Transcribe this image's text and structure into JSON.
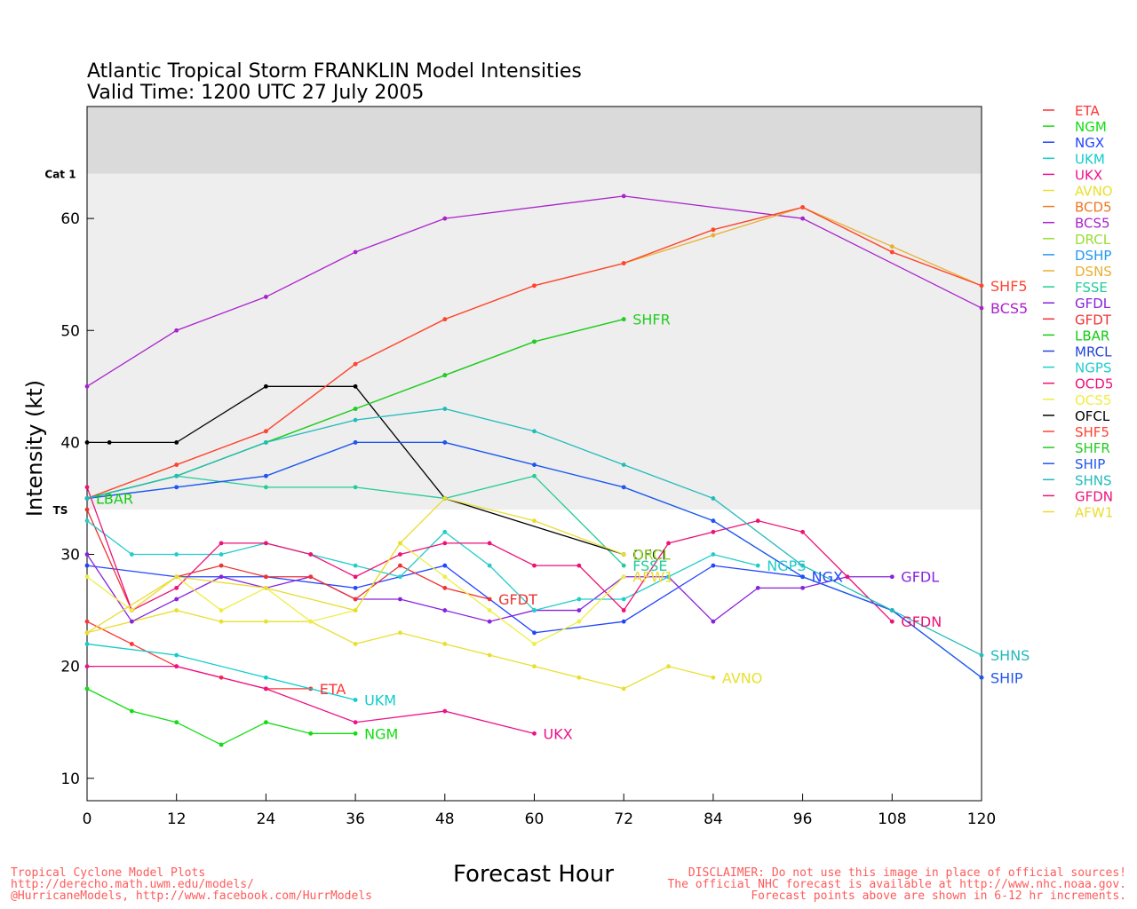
{
  "chart_data": {
    "type": "line",
    "title": "Atlantic Tropical Storm FRANKLIN Model Intensities",
    "subtitle": "Valid Time: 1200 UTC 27 July 2005",
    "xlabel": "Forecast Hour",
    "ylabel": "Intensity (kt)",
    "xlim": [
      0,
      120
    ],
    "ylim": [
      8,
      70
    ],
    "x_ticks": [
      0,
      12,
      24,
      36,
      48,
      60,
      72,
      84,
      96,
      108,
      120
    ],
    "y_ticks": [
      10,
      20,
      30,
      40,
      50,
      60
    ],
    "bands": [
      {
        "label": "TS",
        "from": 34,
        "to": 64,
        "color": "#eeeeee"
      },
      {
        "label": "Cat 1",
        "from": 64,
        "to": 70,
        "color": "#dadada"
      }
    ],
    "legend_position": "right",
    "series": [
      {
        "name": "ETA",
        "color": "#ff3333",
        "points": [
          [
            0,
            24
          ],
          [
            6,
            22
          ],
          [
            12,
            20
          ],
          [
            18,
            19
          ],
          [
            24,
            18
          ],
          [
            30,
            18
          ]
        ]
      },
      {
        "name": "NGM",
        "color": "#11dd11",
        "points": [
          [
            0,
            18
          ],
          [
            6,
            16
          ],
          [
            12,
            15
          ],
          [
            18,
            13
          ],
          [
            24,
            15
          ],
          [
            30,
            14
          ],
          [
            36,
            14
          ]
        ]
      },
      {
        "name": "NGX",
        "color": "#2244ff",
        "points": [
          [
            0,
            29
          ],
          [
            12,
            28
          ],
          [
            24,
            28
          ],
          [
            36,
            27
          ],
          [
            48,
            29
          ],
          [
            60,
            23
          ],
          [
            72,
            24
          ],
          [
            84,
            29
          ],
          [
            96,
            28
          ]
        ]
      },
      {
        "name": "UKM",
        "color": "#11cccc",
        "points": [
          [
            0,
            22
          ],
          [
            12,
            21
          ],
          [
            24,
            19
          ],
          [
            36,
            17
          ]
        ]
      },
      {
        "name": "UKX",
        "color": "#ee1188",
        "points": [
          [
            0,
            20
          ],
          [
            12,
            20
          ],
          [
            24,
            18
          ],
          [
            36,
            15
          ],
          [
            48,
            16
          ],
          [
            60,
            14
          ]
        ]
      },
      {
        "name": "AVNO",
        "color": "#e8e030",
        "points": [
          [
            0,
            23
          ],
          [
            12,
            25
          ],
          [
            18,
            24
          ],
          [
            24,
            24
          ],
          [
            30,
            24
          ],
          [
            36,
            22
          ],
          [
            42,
            23
          ],
          [
            48,
            22
          ],
          [
            54,
            21
          ],
          [
            60,
            20
          ],
          [
            66,
            19
          ],
          [
            72,
            18
          ],
          [
            78,
            20
          ],
          [
            84,
            19
          ]
        ]
      },
      {
        "name": "BCD5",
        "color": "#ee7722",
        "points": [
          [
            0,
            35
          ],
          [
            12,
            38
          ],
          [
            24,
            41
          ],
          [
            36,
            47
          ],
          [
            48,
            51
          ],
          [
            60,
            54
          ],
          [
            72,
            56
          ],
          [
            84,
            59
          ],
          [
            96,
            61
          ],
          [
            108,
            57
          ],
          [
            120,
            54
          ]
        ]
      },
      {
        "name": "BCS5",
        "color": "#aa22cc",
        "points": [
          [
            0,
            45
          ],
          [
            12,
            50
          ],
          [
            24,
            53
          ],
          [
            36,
            57
          ],
          [
            48,
            60
          ],
          [
            72,
            62
          ],
          [
            96,
            60
          ],
          [
            120,
            52
          ]
        ]
      },
      {
        "name": "DRCL",
        "color": "#99dd33",
        "points": []
      },
      {
        "name": "DSHP",
        "color": "#2299ee",
        "points": [
          [
            0,
            35
          ],
          [
            12,
            36
          ],
          [
            24,
            37
          ],
          [
            36,
            40
          ],
          [
            48,
            40
          ],
          [
            60,
            38
          ],
          [
            72,
            36
          ],
          [
            84,
            33
          ],
          [
            96,
            28
          ],
          [
            108,
            25
          ],
          [
            120,
            19
          ]
        ]
      },
      {
        "name": "DSNS",
        "color": "#e8b030",
        "points": [
          [
            72,
            56
          ],
          [
            84,
            58.5
          ],
          [
            96,
            61
          ],
          [
            108,
            57.5
          ],
          [
            120,
            54
          ]
        ]
      },
      {
        "name": "FSSE",
        "color": "#22cc99",
        "points": [
          [
            0,
            35
          ],
          [
            12,
            37
          ],
          [
            24,
            36
          ],
          [
            36,
            36
          ],
          [
            48,
            35
          ],
          [
            60,
            37
          ],
          [
            72,
            29
          ]
        ]
      },
      {
        "name": "GFDL",
        "color": "#8822dd",
        "points": [
          [
            0,
            30
          ],
          [
            6,
            24
          ],
          [
            12,
            26
          ],
          [
            18,
            28
          ],
          [
            24,
            27
          ],
          [
            30,
            28
          ],
          [
            36,
            26
          ],
          [
            42,
            26
          ],
          [
            48,
            25
          ],
          [
            54,
            24
          ],
          [
            60,
            25
          ],
          [
            66,
            25
          ],
          [
            72,
            28
          ],
          [
            78,
            28
          ],
          [
            84,
            24
          ],
          [
            90,
            27
          ],
          [
            96,
            27
          ],
          [
            102,
            28
          ],
          [
            108,
            28
          ]
        ]
      },
      {
        "name": "GFDT",
        "color": "#ee3333",
        "points": [
          [
            0,
            34
          ],
          [
            6,
            25
          ],
          [
            12,
            28
          ],
          [
            18,
            29
          ],
          [
            24,
            28
          ],
          [
            30,
            28
          ],
          [
            36,
            26
          ],
          [
            42,
            29
          ],
          [
            48,
            27
          ],
          [
            54,
            26
          ]
        ]
      },
      {
        "name": "LBAR",
        "color": "#11cc11",
        "points": [
          [
            0,
            35
          ],
          [
            12,
            37
          ],
          [
            24,
            40
          ],
          [
            36,
            43
          ],
          [
            48,
            46
          ],
          [
            60,
            49
          ],
          [
            72,
            51
          ]
        ]
      },
      {
        "name": "MRCL",
        "color": "#2244dd",
        "points": []
      },
      {
        "name": "NGPS",
        "color": "#22cccc",
        "points": [
          [
            0,
            33
          ],
          [
            6,
            30
          ],
          [
            12,
            30
          ],
          [
            18,
            30
          ],
          [
            24,
            31
          ],
          [
            30,
            30
          ],
          [
            36,
            29
          ],
          [
            42,
            28
          ],
          [
            48,
            32
          ],
          [
            54,
            29
          ],
          [
            60,
            25
          ],
          [
            66,
            26
          ],
          [
            72,
            26
          ],
          [
            78,
            28
          ],
          [
            84,
            30
          ],
          [
            90,
            29
          ]
        ]
      },
      {
        "name": "OCD5",
        "color": "#ee1177",
        "points": [
          [
            0,
            36
          ],
          [
            6,
            25
          ],
          [
            12,
            27
          ],
          [
            18,
            31
          ],
          [
            24,
            31
          ],
          [
            30,
            30
          ],
          [
            36,
            28
          ],
          [
            42,
            30
          ],
          [
            48,
            31
          ],
          [
            54,
            31
          ],
          [
            60,
            29
          ],
          [
            66,
            29
          ],
          [
            72,
            25
          ],
          [
            78,
            31
          ],
          [
            84,
            32
          ],
          [
            90,
            33
          ],
          [
            96,
            32
          ],
          [
            102,
            28
          ],
          [
            108,
            24
          ]
        ]
      },
      {
        "name": "OCS5",
        "color": "#eeee44",
        "points": [
          [
            0,
            28
          ],
          [
            6,
            25
          ],
          [
            12,
            28
          ],
          [
            18,
            25
          ],
          [
            24,
            27
          ],
          [
            30,
            24
          ],
          [
            36,
            25
          ],
          [
            42,
            31
          ],
          [
            48,
            28
          ],
          [
            54,
            25
          ],
          [
            60,
            22
          ],
          [
            66,
            24
          ],
          [
            72,
            28
          ]
        ]
      },
      {
        "name": "OFCL",
        "color": "#000000",
        "points": [
          [
            0,
            40
          ],
          [
            3,
            40
          ],
          [
            12,
            40
          ],
          [
            24,
            45
          ],
          [
            36,
            45
          ],
          [
            48,
            35
          ],
          [
            72,
            30
          ]
        ]
      },
      {
        "name": "SHF5",
        "color": "#ff4433",
        "points": [
          [
            0,
            35
          ],
          [
            12,
            38
          ],
          [
            24,
            41
          ],
          [
            36,
            47
          ],
          [
            48,
            51
          ],
          [
            60,
            54
          ],
          [
            72,
            56
          ],
          [
            84,
            59
          ],
          [
            96,
            61
          ],
          [
            108,
            57
          ],
          [
            120,
            54
          ]
        ]
      },
      {
        "name": "SHFR",
        "color": "#22cc22",
        "points": [
          [
            0,
            35
          ],
          [
            12,
            37
          ],
          [
            24,
            40
          ],
          [
            36,
            43
          ],
          [
            48,
            46
          ],
          [
            60,
            49
          ],
          [
            72,
            51
          ]
        ]
      },
      {
        "name": "SHIP",
        "color": "#2255ee",
        "points": [
          [
            0,
            35
          ],
          [
            12,
            36
          ],
          [
            24,
            37
          ],
          [
            36,
            40
          ],
          [
            48,
            40
          ],
          [
            60,
            38
          ],
          [
            72,
            36
          ],
          [
            84,
            33
          ],
          [
            96,
            28
          ],
          [
            108,
            25
          ],
          [
            120,
            19
          ]
        ]
      },
      {
        "name": "SHNS",
        "color": "#22bbbb",
        "points": [
          [
            0,
            35
          ],
          [
            12,
            37
          ],
          [
            24,
            40
          ],
          [
            36,
            42
          ],
          [
            48,
            43
          ],
          [
            60,
            41
          ],
          [
            72,
            38
          ],
          [
            84,
            35
          ],
          [
            96,
            29
          ],
          [
            108,
            25
          ],
          [
            120,
            21
          ]
        ]
      },
      {
        "name": "GFDN",
        "color": "#ee1177",
        "points": []
      },
      {
        "name": "AFW1",
        "color": "#e8dd30",
        "points": [
          [
            0,
            23
          ],
          [
            12,
            28
          ],
          [
            24,
            27
          ],
          [
            36,
            25
          ],
          [
            42,
            31
          ],
          [
            48,
            35
          ],
          [
            60,
            33
          ],
          [
            72,
            30
          ]
        ]
      }
    ],
    "labels": [
      {
        "text": "ETA",
        "x": 30,
        "y": 18,
        "color": "#ff3333"
      },
      {
        "text": "UKM",
        "x": 36,
        "y": 17,
        "color": "#11cccc"
      },
      {
        "text": "NGM",
        "x": 36,
        "y": 14,
        "color": "#11dd11"
      },
      {
        "text": "UKX",
        "x": 60,
        "y": 14,
        "color": "#ee1188"
      },
      {
        "text": "GFDT",
        "x": 54,
        "y": 26,
        "color": "#ee3333"
      },
      {
        "text": "AVNO",
        "x": 84,
        "y": 19,
        "color": "#e8e030"
      },
      {
        "text": "SHFR",
        "x": 72,
        "y": 51,
        "color": "#22cc22"
      },
      {
        "text": "LBAR",
        "x": 0,
        "y": 35,
        "color": "#11cc11"
      },
      {
        "text": "OFCL",
        "x": 72,
        "y": 30,
        "color": "#000000"
      },
      {
        "text": "DRCL",
        "x": 72,
        "y": 30,
        "color": "#99dd33"
      },
      {
        "text": "FSSE",
        "x": 72,
        "y": 29,
        "color": "#22cc99"
      },
      {
        "text": "AFW1",
        "x": 72,
        "y": 28,
        "color": "#e8dd30"
      },
      {
        "text": "NGPS",
        "x": 90,
        "y": 29,
        "color": "#22cccc"
      },
      {
        "text": "NGX",
        "x": 96,
        "y": 28,
        "color": "#2244ff"
      },
      {
        "text": "GFDL",
        "x": 108,
        "y": 28,
        "color": "#8822dd"
      },
      {
        "text": "GFDN",
        "x": 108,
        "y": 24,
        "color": "#ee1177"
      },
      {
        "text": "SHF5",
        "x": 120,
        "y": 54,
        "color": "#ff4433"
      },
      {
        "text": "BCS5",
        "x": 120,
        "y": 52,
        "color": "#aa22cc"
      },
      {
        "text": "SHNS",
        "x": 120,
        "y": 21,
        "color": "#22bbbb"
      },
      {
        "text": "SHIP",
        "x": 120,
        "y": 19,
        "color": "#2255ee"
      }
    ]
  },
  "footer": {
    "left": "Tropical Cyclone Model Plots\nhttp://derecho.math.uwm.edu/models/\n@HurricaneModels, http://www.facebook.com/HurrModels",
    "right": "DISCLAIMER: Do not use this image in place of official sources!\nThe official NHC forecast is available at http://www.nhc.noaa.gov.\nForecast points above are shown in 6-12 hr increments."
  }
}
